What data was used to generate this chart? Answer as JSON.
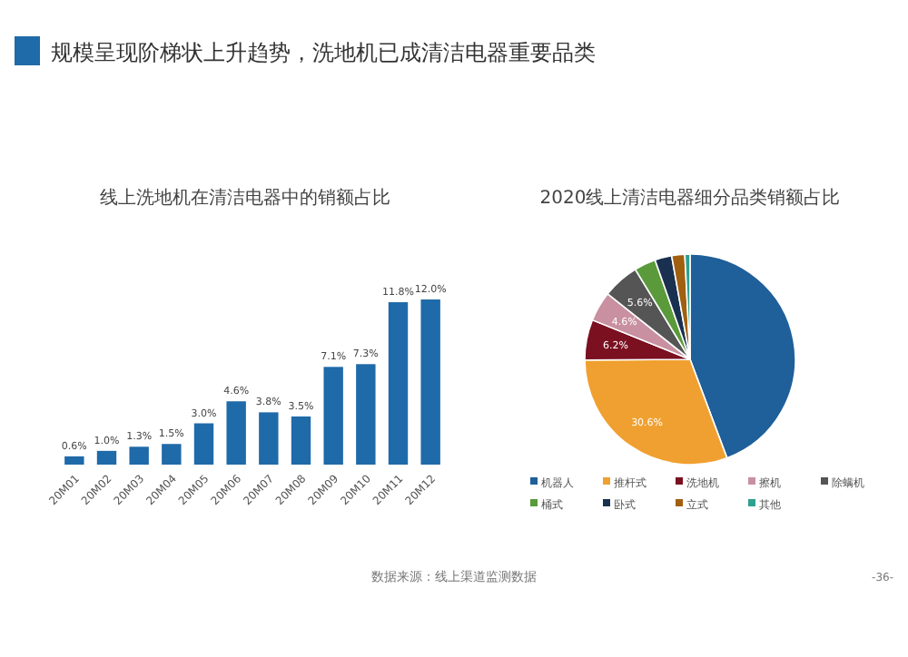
{
  "chart_data": [
    {
      "type": "bar",
      "title": "线上洗地机在清洁电器中的销额占比",
      "categories": [
        "20M01",
        "20M02",
        "20M03",
        "20M04",
        "20M05",
        "20M06",
        "20M07",
        "20M08",
        "20M09",
        "20M10",
        "20M11",
        "20M12"
      ],
      "values": [
        0.6,
        1.0,
        1.3,
        1.5,
        3.0,
        4.6,
        3.8,
        3.5,
        7.1,
        7.3,
        11.8,
        12.0
      ],
      "value_labels": [
        "0.6%",
        "1.0%",
        "1.3%",
        "1.5%",
        "3.0%",
        "4.6%",
        "3.8%",
        "3.5%",
        "7.1%",
        "7.3%",
        "11.8%",
        "12.0%"
      ],
      "color": "#1f6aa8",
      "annotations": [
        "规模呈现阶梯状上升趋势，洗地机已成清洁电器重要品类",
        "数据来源：线上渠道监测数据"
      ]
    },
    {
      "type": "pie",
      "title": "2020线上清洁电器细分品类销额占比",
      "categories": [
        "机器人",
        "推杆式",
        "洗地机",
        "擦机",
        "除螨机",
        "桶式",
        "卧式",
        "立式",
        "其他"
      ],
      "values": [
        44.3,
        30.6,
        6.2,
        4.6,
        5.6,
        3.3,
        2.6,
        2.0,
        0.8
      ],
      "value_labels": [
        null,
        "30.6%",
        "6.2%",
        "4.6%",
        "5.6%",
        null,
        null,
        null,
        null
      ],
      "colors": [
        "#1f5f9a",
        "#f0a030",
        "#7a1020",
        "#c890a0",
        "#555555",
        "#5a9a3a",
        "#1a3050",
        "#a06010",
        "#30a090"
      ],
      "legend": "bottom",
      "annotations": [
        "-36-"
      ]
    }
  ]
}
